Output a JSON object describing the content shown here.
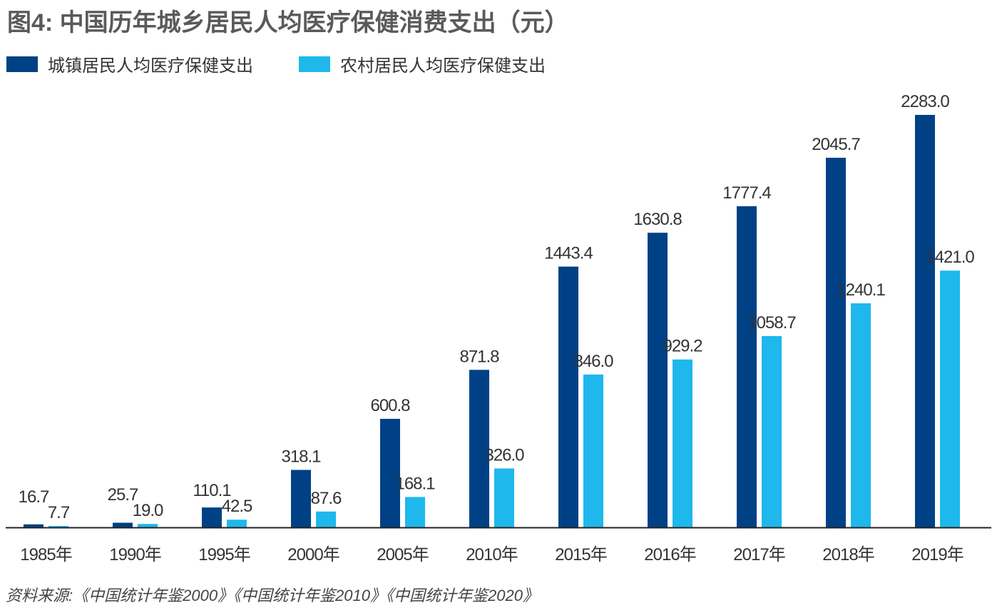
{
  "chart_data": {
    "type": "bar",
    "title": "图4: 中国历年城乡居民人均医疗保健消费支出（元）",
    "categories": [
      "1985年",
      "1990年",
      "1995年",
      "2000年",
      "2005年",
      "2010年",
      "2015年",
      "2016年",
      "2017年",
      "2018年",
      "2019年"
    ],
    "series": [
      {
        "name": "城镇居民人均医疗保健支出",
        "color": "#004185",
        "values": [
          16.7,
          25.7,
          110.1,
          318.1,
          600.8,
          871.8,
          1443.4,
          1630.8,
          1777.4,
          2045.7,
          2283.0
        ]
      },
      {
        "name": "农村居民人均医疗保健支出",
        "color": "#1eb8ec",
        "values": [
          7.7,
          19.0,
          42.5,
          87.6,
          168.1,
          326.0,
          846.0,
          929.2,
          1058.7,
          1240.1,
          1421.0
        ]
      }
    ],
    "ylim": [
      0,
      2283.0
    ],
    "grid": false,
    "legend_position": "top-left",
    "data_labels": true,
    "source": "资料来源:《中国统计年鉴2000》《中国统计年鉴2010》《中国统计年鉴2020》"
  }
}
